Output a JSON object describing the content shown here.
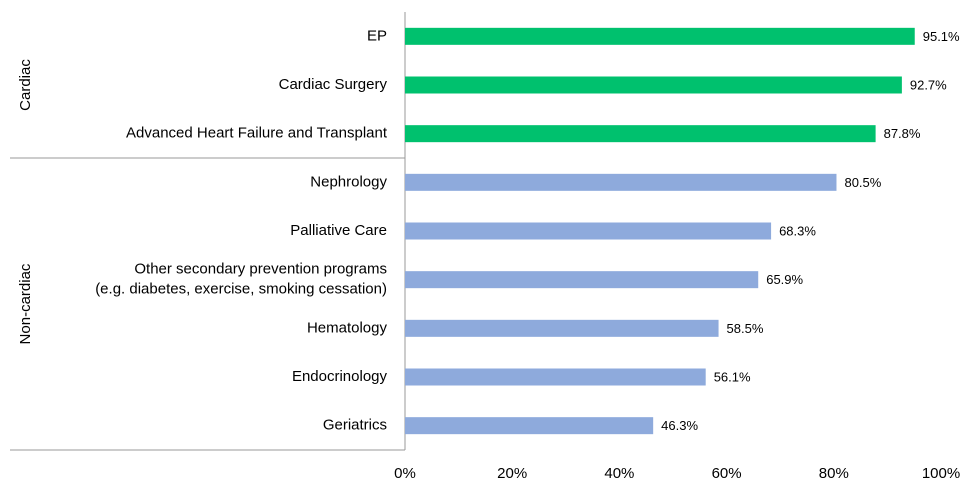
{
  "chart_data": {
    "type": "bar",
    "orientation": "horizontal",
    "groups": [
      {
        "name": "Cardiac",
        "color": "#00c16e",
        "categories": [
          "EP",
          "Cardiac Surgery",
          "Advanced Heart Failure and Transplant"
        ],
        "values": [
          95.1,
          92.7,
          87.8
        ],
        "value_labels": [
          "95.1%",
          "92.7%",
          "87.8%"
        ]
      },
      {
        "name": "Non-cardiac",
        "color": "#8eaadc",
        "categories": [
          "Nephrology",
          "Palliative Care",
          "Other secondary prevention programs\n(e.g. diabetes, exercise, smoking cessation)",
          "Hematology",
          "Endocrinology",
          "Geriatrics"
        ],
        "values": [
          80.5,
          68.3,
          65.9,
          58.5,
          56.1,
          46.3
        ],
        "value_labels": [
          "80.5%",
          "68.3%",
          "65.9%",
          "58.5%",
          "56.1%",
          "46.3%"
        ]
      }
    ],
    "xlim": [
      0,
      100
    ],
    "xticks": [
      {
        "value": 0,
        "label": "0%"
      },
      {
        "value": 20,
        "label": "20%"
      },
      {
        "value": 40,
        "label": "40%"
      },
      {
        "value": 60,
        "label": "60%"
      },
      {
        "value": 80,
        "label": "80%"
      },
      {
        "value": 100,
        "label": "100%"
      }
    ],
    "grid": false
  }
}
